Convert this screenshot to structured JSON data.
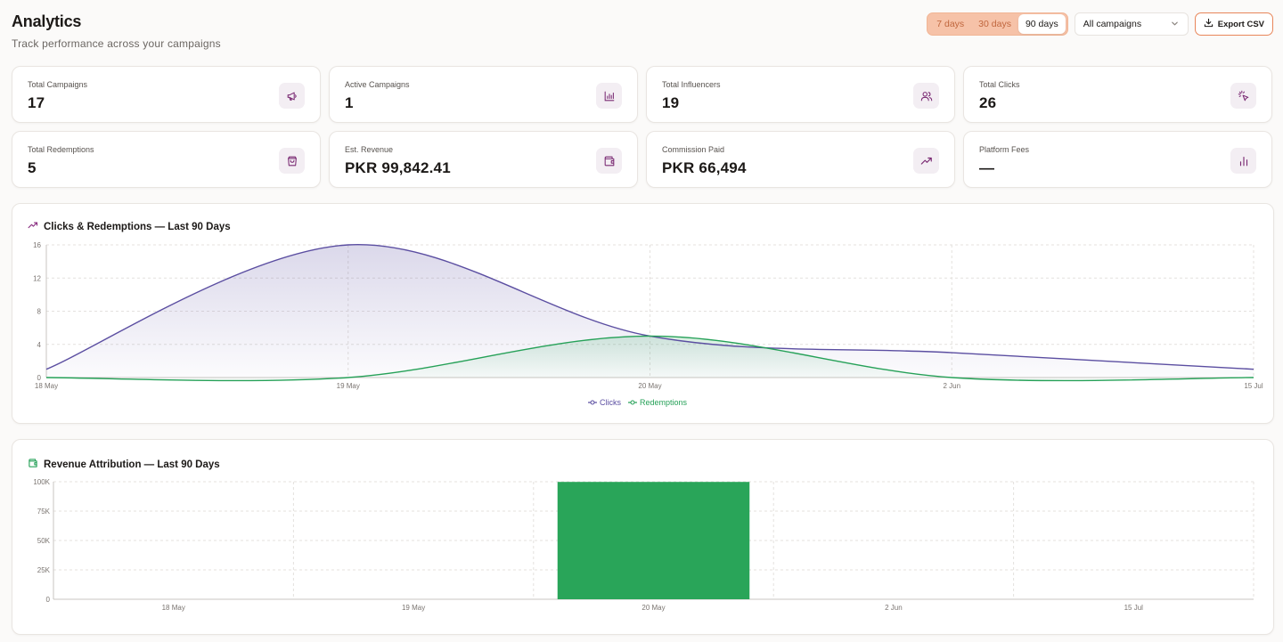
{
  "header": {
    "title": "Analytics",
    "subtitle": "Track performance across your campaigns"
  },
  "controls": {
    "ranges": [
      "7 days",
      "30 days",
      "90 days"
    ],
    "active_range": "90 days",
    "campaign_select": "All campaigns",
    "export_label": "Export CSV"
  },
  "stats": [
    {
      "label": "Total Campaigns",
      "value": "17",
      "icon": "megaphone-icon"
    },
    {
      "label": "Active Campaigns",
      "value": "1",
      "icon": "bar-chart-icon"
    },
    {
      "label": "Total Influencers",
      "value": "19",
      "icon": "users-icon"
    },
    {
      "label": "Total Clicks",
      "value": "26",
      "icon": "pointer-click-icon"
    },
    {
      "label": "Total Redemptions",
      "value": "5",
      "icon": "shopping-bag-icon"
    },
    {
      "label": "Est. Revenue",
      "value": "PKR 99,842.41",
      "icon": "wallet-icon"
    },
    {
      "label": "Commission Paid",
      "value": "PKR 66,494",
      "icon": "trending-up-icon"
    },
    {
      "label": "Platform Fees",
      "value": "—",
      "icon": "chart-bars-icon"
    }
  ],
  "colors": {
    "clicks": "#5b4ea1",
    "redemptions": "#26a158",
    "revenue_bar": "#29a559",
    "accent": "#e8865a"
  },
  "chart_data": [
    {
      "type": "area",
      "title": "Clicks & Redemptions — Last 90 Days",
      "title_icon": "trending-up-icon",
      "categories": [
        "18 May",
        "19 May",
        "20 May",
        "2 Jun",
        "15 Jul"
      ],
      "yticks": [
        0,
        4,
        8,
        12,
        16
      ],
      "ylim": [
        0,
        16
      ],
      "grid": true,
      "legend": "bottom",
      "series": [
        {
          "name": "Clicks",
          "values": [
            1,
            16,
            5,
            3,
            1
          ]
        },
        {
          "name": "Redemptions",
          "values": [
            0,
            0,
            5,
            0,
            0
          ]
        }
      ]
    },
    {
      "type": "bar",
      "title": "Revenue Attribution — Last 90 Days",
      "title_icon": "wallet-icon",
      "categories": [
        "18 May",
        "19 May",
        "20 May",
        "2 Jun",
        "15 Jul"
      ],
      "values": [
        0,
        0,
        99842.41,
        0,
        0
      ],
      "yticks": [
        "0",
        "25K",
        "50K",
        "75K",
        "100K"
      ],
      "ylim": [
        0,
        100000
      ],
      "grid": true
    }
  ]
}
